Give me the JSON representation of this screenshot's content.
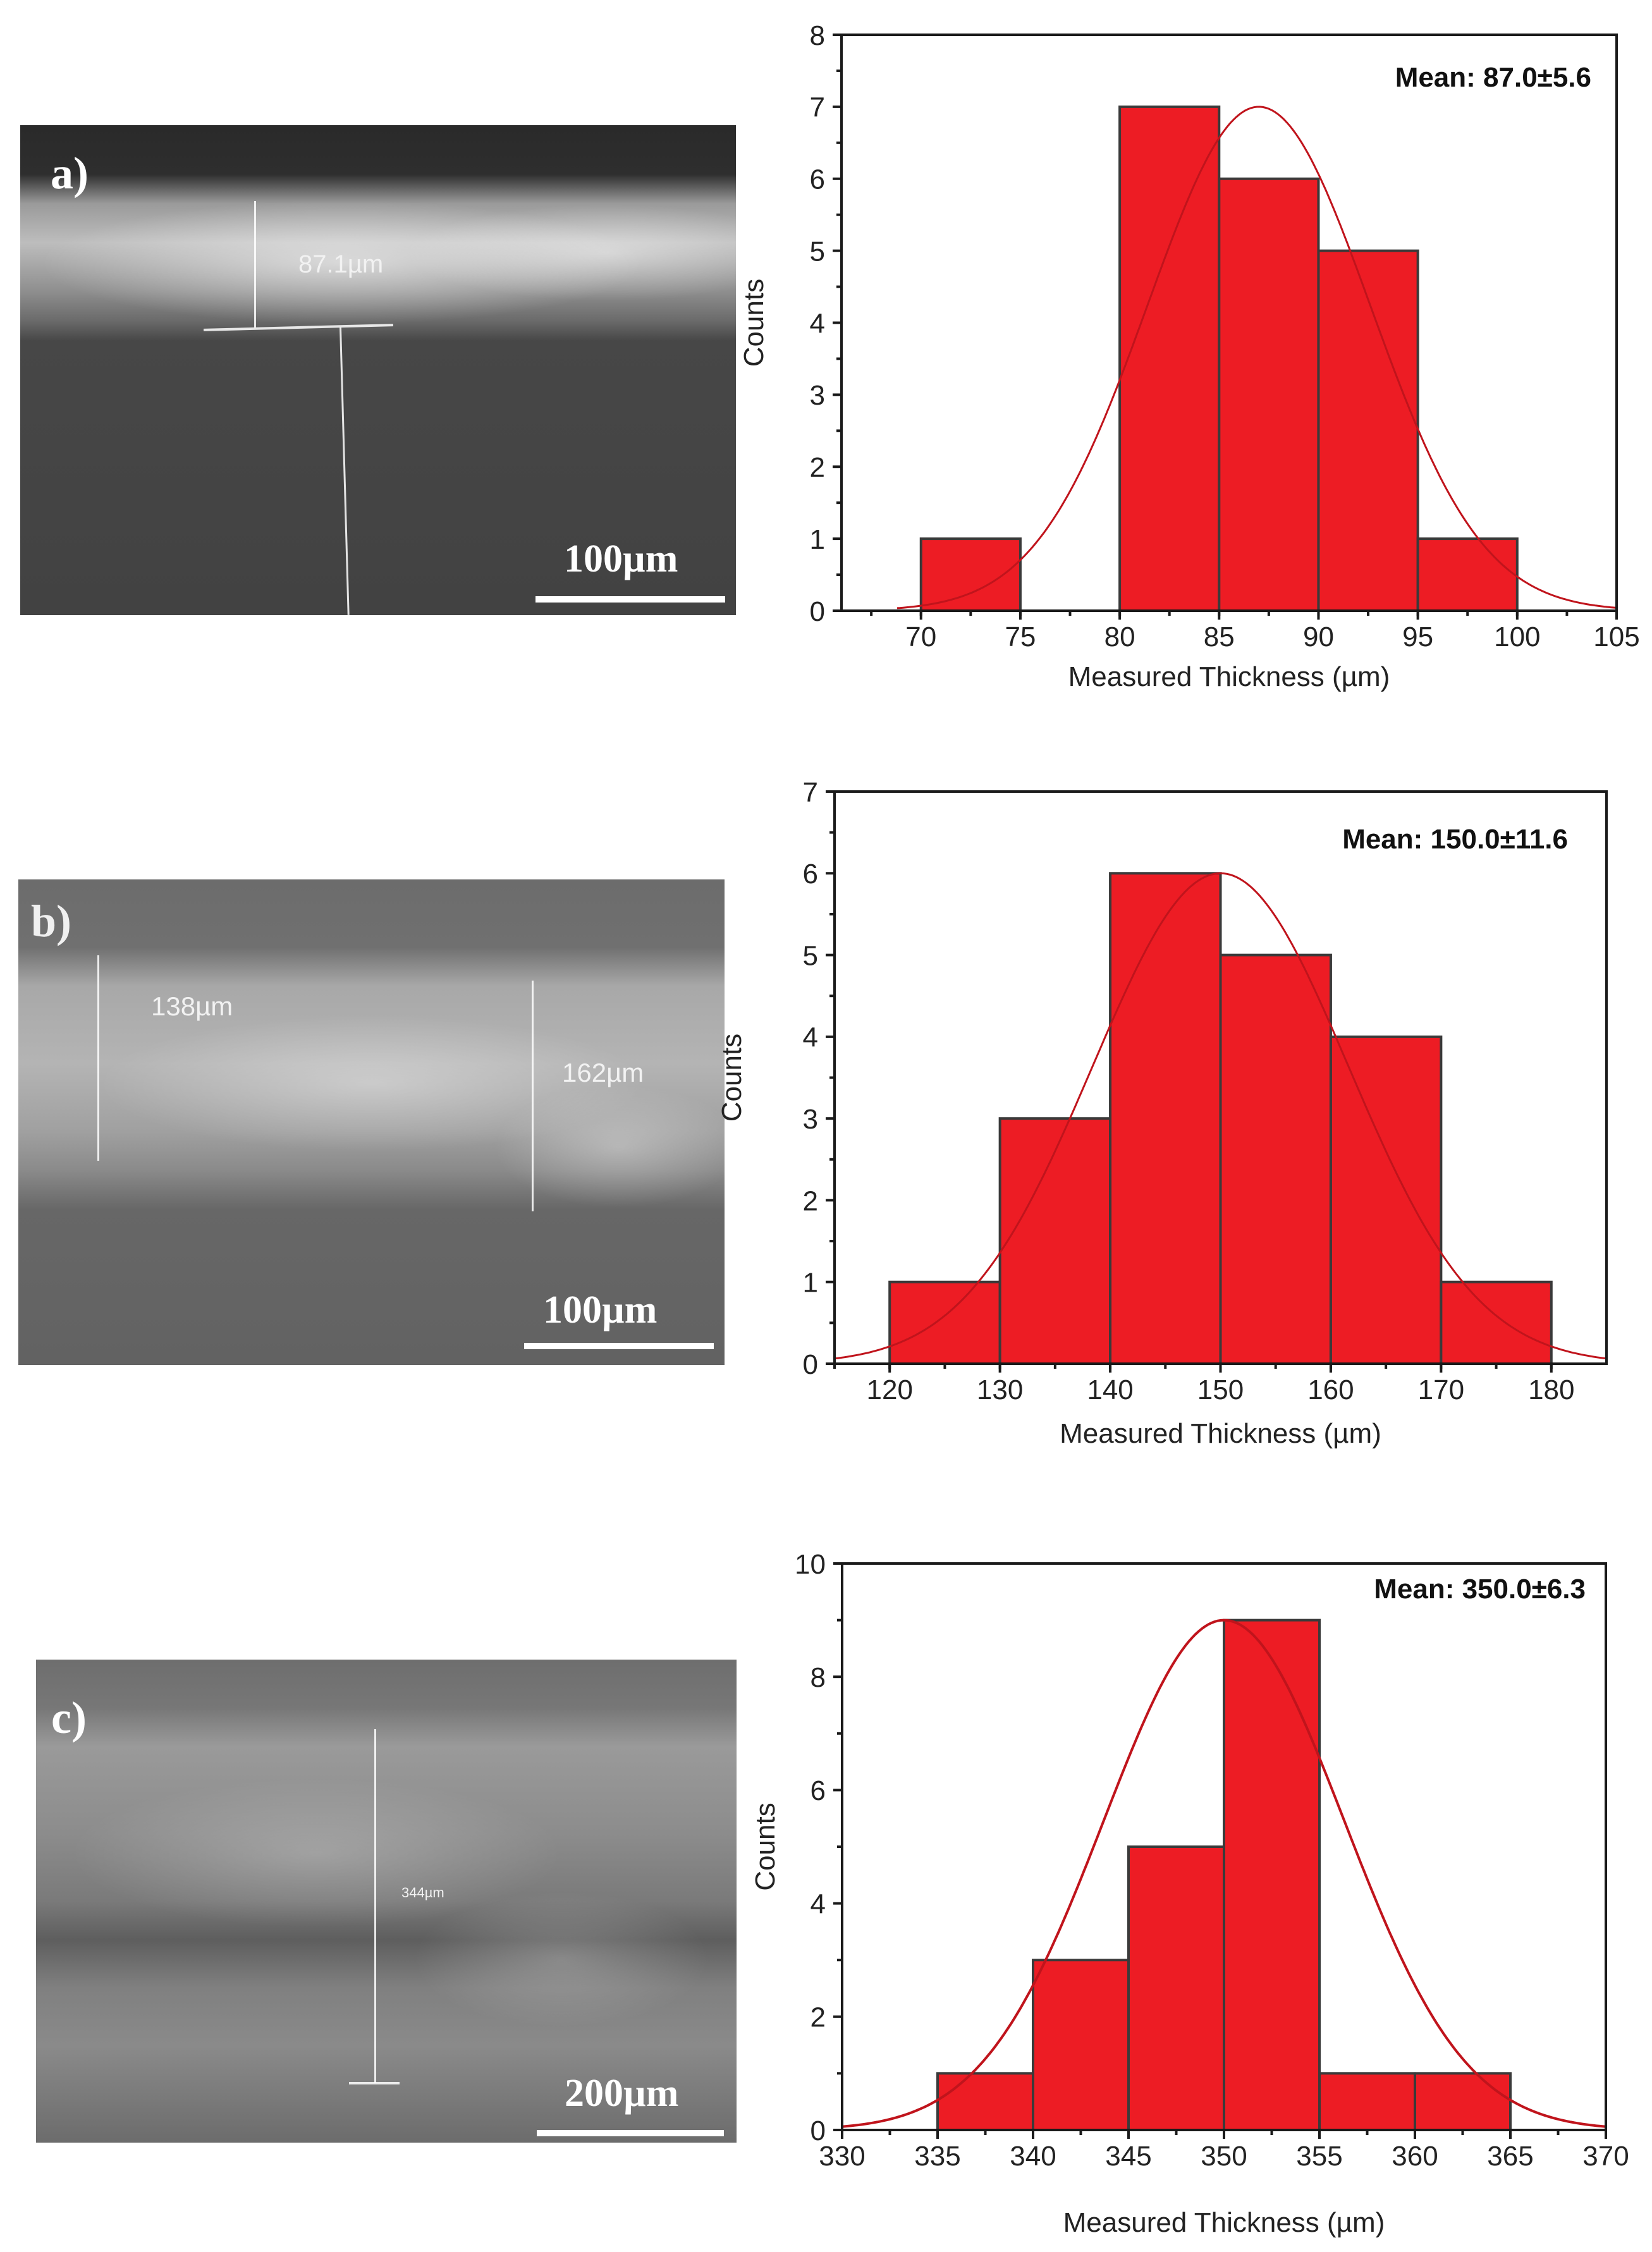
{
  "figure": {
    "panels": [
      {
        "id": "a",
        "sem": {
          "label": "a)",
          "measurements": [
            "87.1µm"
          ],
          "scale_bar": "100µm"
        }
      },
      {
        "id": "b",
        "sem": {
          "label": "b)",
          "measurements": [
            "138µm",
            "162µm"
          ],
          "scale_bar": "100µm"
        }
      },
      {
        "id": "c",
        "sem": {
          "label": "c)",
          "measurements": [
            "344µm"
          ],
          "scale_bar": "200µm"
        }
      }
    ]
  },
  "colors": {
    "bar_fill": "#ed1c24",
    "bar_edge": "#3a3a3a",
    "fit_curve": "#c0141c",
    "axis": "#1a1a1a"
  },
  "chart_data": [
    {
      "type": "bar",
      "subtype": "histogram",
      "panel": "a",
      "title": "",
      "annotation": "Mean: 87.0±5.6",
      "xlabel": "Measured Thickness (µm)",
      "ylabel": "Counts",
      "xlim": [
        66,
        105
      ],
      "ylim": [
        0,
        8
      ],
      "xticks": [
        70,
        75,
        80,
        85,
        90,
        95,
        100,
        105
      ],
      "yticks": [
        0,
        1,
        2,
        3,
        4,
        5,
        6,
        7,
        8
      ],
      "bins": [
        [
          70,
          75
        ],
        [
          75,
          80
        ],
        [
          80,
          85
        ],
        [
          85,
          90
        ],
        [
          90,
          95
        ],
        [
          95,
          100
        ]
      ],
      "values": [
        1,
        0,
        7,
        6,
        5,
        1
      ],
      "fit": {
        "type": "normal",
        "mean": 87.0,
        "sd": 5.6,
        "peak": 7.0,
        "x_start": 68.8
      },
      "grid": false,
      "legend": null
    },
    {
      "type": "bar",
      "subtype": "histogram",
      "panel": "b",
      "title": "",
      "annotation": "Mean: 150.0±11.6",
      "xlabel": "Measured Thickness (µm)",
      "ylabel": "Counts",
      "xlim": [
        115,
        185
      ],
      "ylim": [
        0,
        7
      ],
      "xticks": [
        120,
        130,
        140,
        150,
        160,
        170,
        180
      ],
      "yticks": [
        0,
        1,
        2,
        3,
        4,
        5,
        6,
        7
      ],
      "bins": [
        [
          120,
          130
        ],
        [
          130,
          140
        ],
        [
          140,
          150
        ],
        [
          150,
          160
        ],
        [
          160,
          170
        ],
        [
          170,
          180
        ]
      ],
      "values": [
        1,
        3,
        6,
        5,
        4,
        1
      ],
      "fit": {
        "type": "normal",
        "mean": 150.0,
        "sd": 11.6,
        "peak": 6.0,
        "x_start": 115
      },
      "grid": false,
      "legend": null
    },
    {
      "type": "bar",
      "subtype": "histogram",
      "panel": "c",
      "title": "",
      "annotation": "Mean: 350.0±6.3",
      "xlabel": "Measured Thickness (µm)",
      "ylabel": "Counts",
      "xlim": [
        330,
        370
      ],
      "ylim": [
        0,
        10
      ],
      "xticks": [
        330,
        335,
        340,
        345,
        350,
        355,
        360,
        365,
        370
      ],
      "yticks": [
        0,
        2,
        4,
        6,
        8,
        10
      ],
      "bins": [
        [
          335,
          340
        ],
        [
          340,
          345
        ],
        [
          345,
          350
        ],
        [
          350,
          355
        ],
        [
          355,
          360
        ],
        [
          360,
          365
        ]
      ],
      "values": [
        1,
        3,
        5,
        9,
        1,
        1
      ],
      "fit": {
        "type": "normal",
        "mean": 350.0,
        "sd": 6.3,
        "peak": 9.0,
        "x_start": 330
      },
      "grid": false,
      "legend": null
    }
  ]
}
